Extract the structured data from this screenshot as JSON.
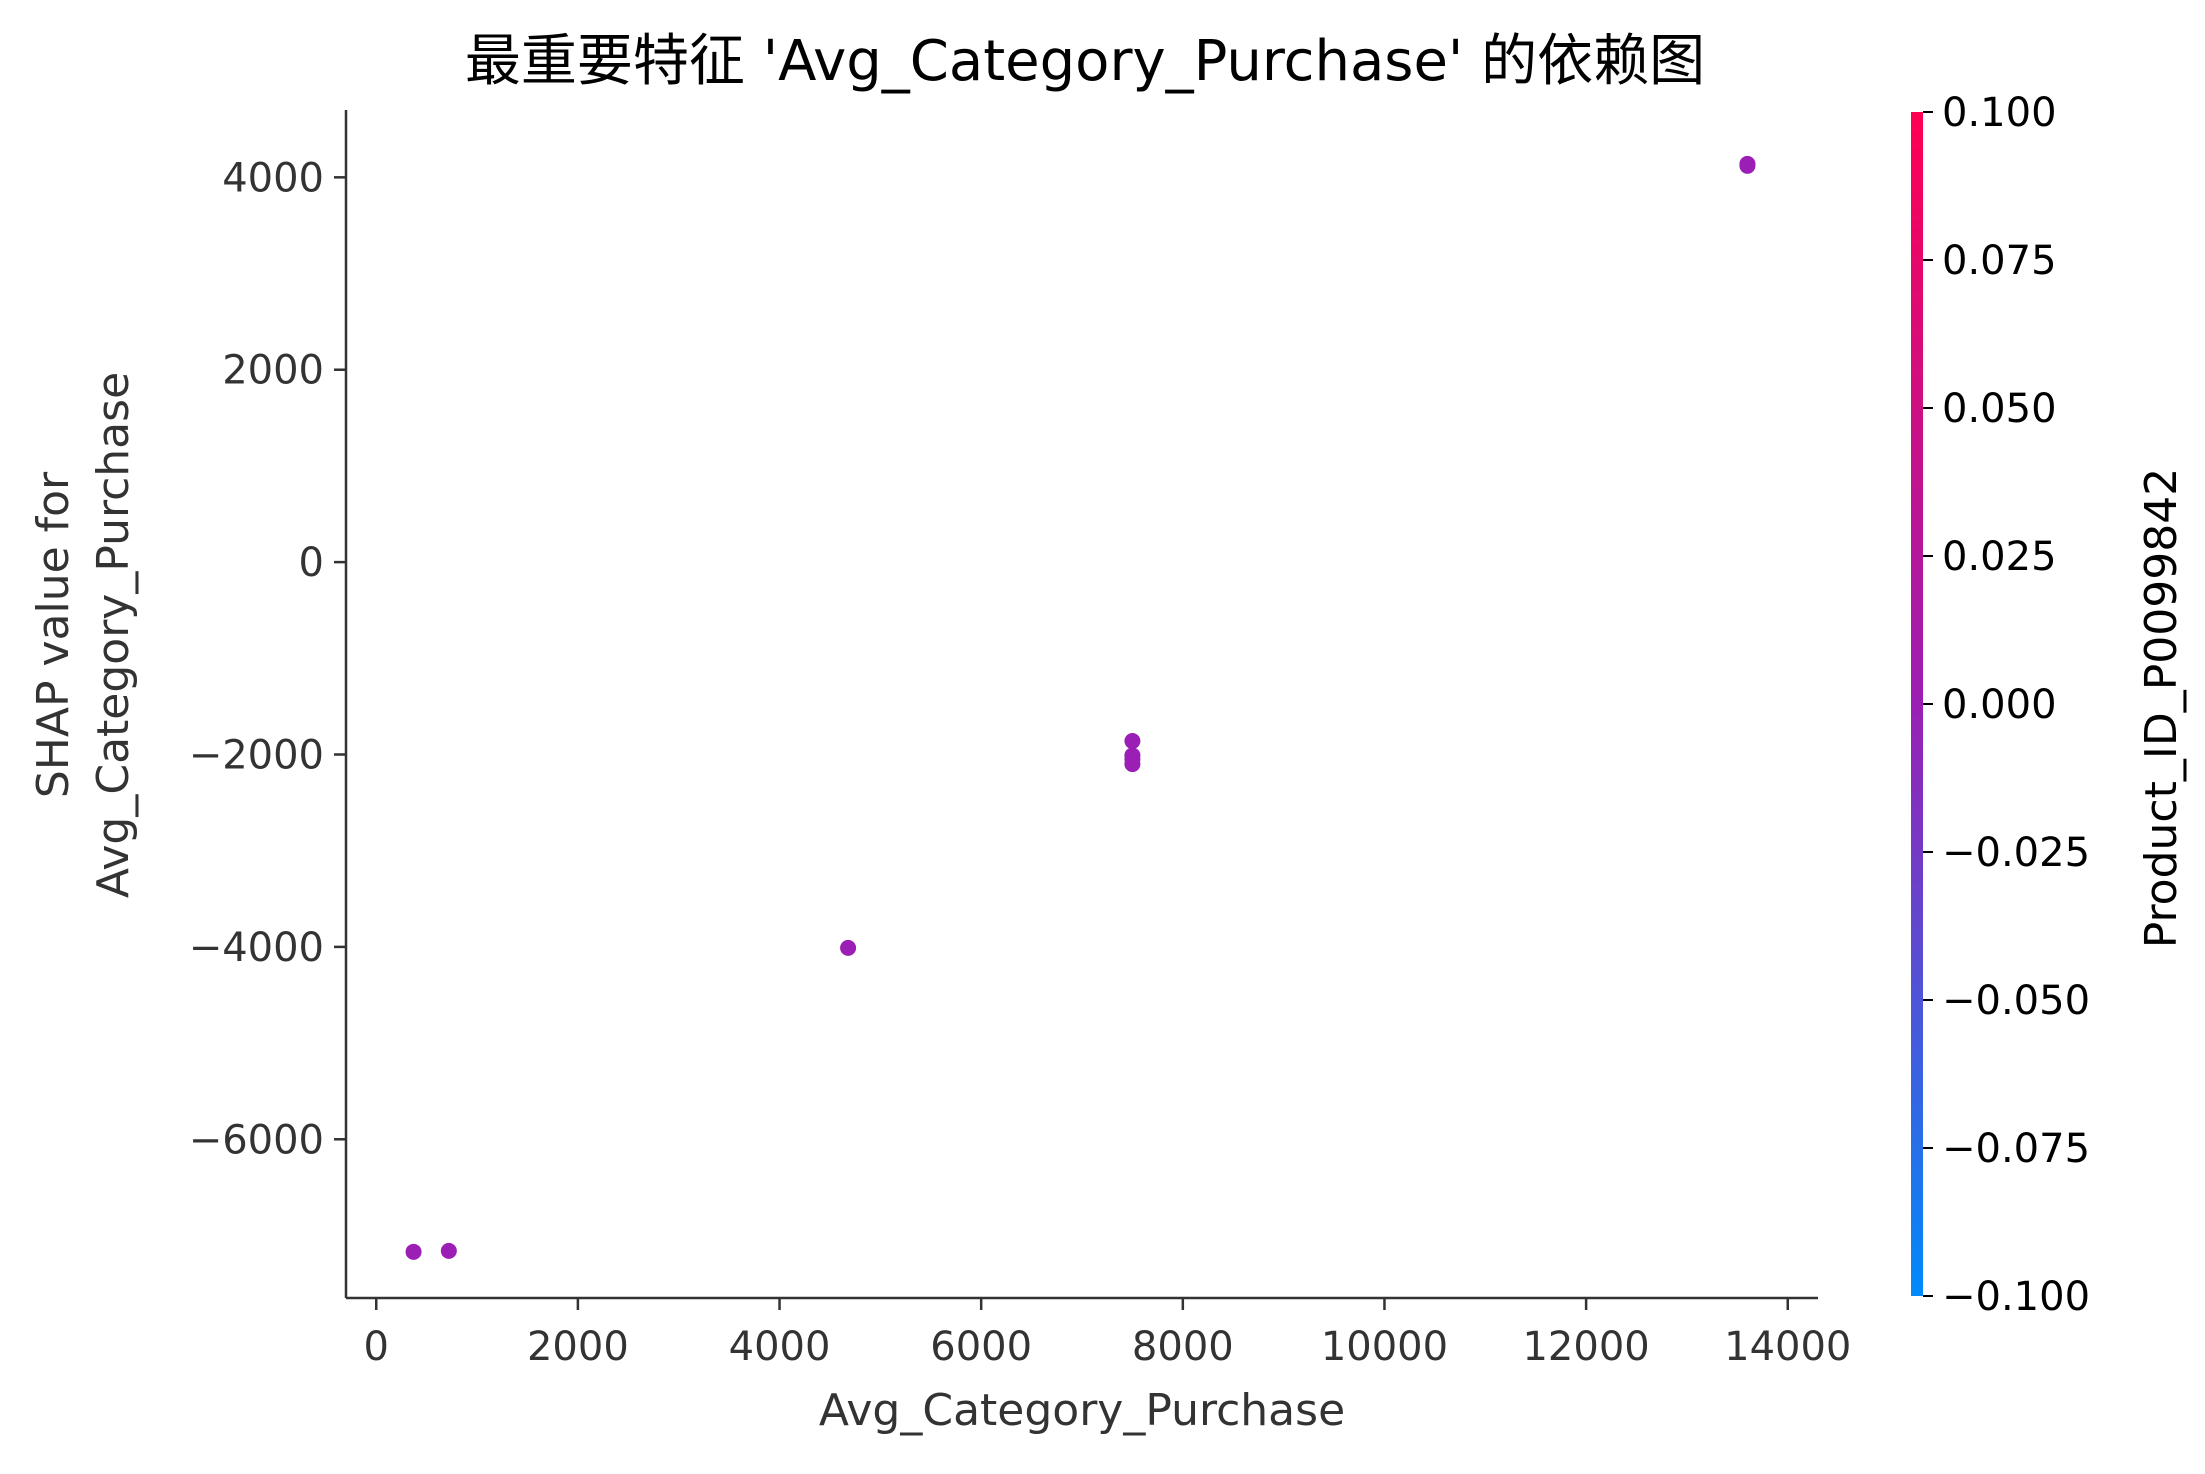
{
  "chart_data": {
    "type": "scatter",
    "title": "最重要特征 'Avg_Category_Purchase' 的依赖图",
    "xlabel": "Avg_Category_Purchase",
    "ylabel_lines": [
      "SHAP value for",
      "Avg_Category_Purchase"
    ],
    "xlim": [
      -300,
      14300
    ],
    "ylim": [
      -7650,
      4700
    ],
    "xticks": [
      0,
      2000,
      4000,
      6000,
      8000,
      10000,
      12000,
      14000
    ],
    "xtick_labels": [
      "0",
      "2000",
      "4000",
      "6000",
      "8000",
      "10000",
      "12000",
      "14000"
    ],
    "yticks": [
      4000,
      2000,
      0,
      -2000,
      -4000,
      -6000
    ],
    "ytick_labels": [
      "4000",
      "2000",
      "0",
      "−2000",
      "−4000",
      "−6000"
    ],
    "grid": false,
    "point_color": "#9b1fb4",
    "points": [
      {
        "x": 370,
        "y": -7170
      },
      {
        "x": 720,
        "y": -7160
      },
      {
        "x": 4680,
        "y": -4010
      },
      {
        "x": 7500,
        "y": -1860
      },
      {
        "x": 7500,
        "y": -2010
      },
      {
        "x": 7500,
        "y": -2050
      },
      {
        "x": 7500,
        "y": -2100
      },
      {
        "x": 13600,
        "y": 4120
      },
      {
        "x": 13600,
        "y": 4140
      }
    ],
    "colorbar": {
      "label": "Product_ID_P0099842",
      "range": [
        -0.1,
        0.1
      ],
      "ticks": [
        0.1,
        0.075,
        0.05,
        0.025,
        0.0,
        -0.025,
        -0.05,
        -0.075,
        -0.1
      ],
      "tick_labels": [
        "0.100",
        "0.075",
        "0.050",
        "0.025",
        "0.000",
        "−0.025",
        "−0.050",
        "−0.075",
        "−0.100"
      ],
      "color_low": "#008afb",
      "color_mid": "#9b1fb4",
      "color_high": "#ff0052"
    }
  }
}
